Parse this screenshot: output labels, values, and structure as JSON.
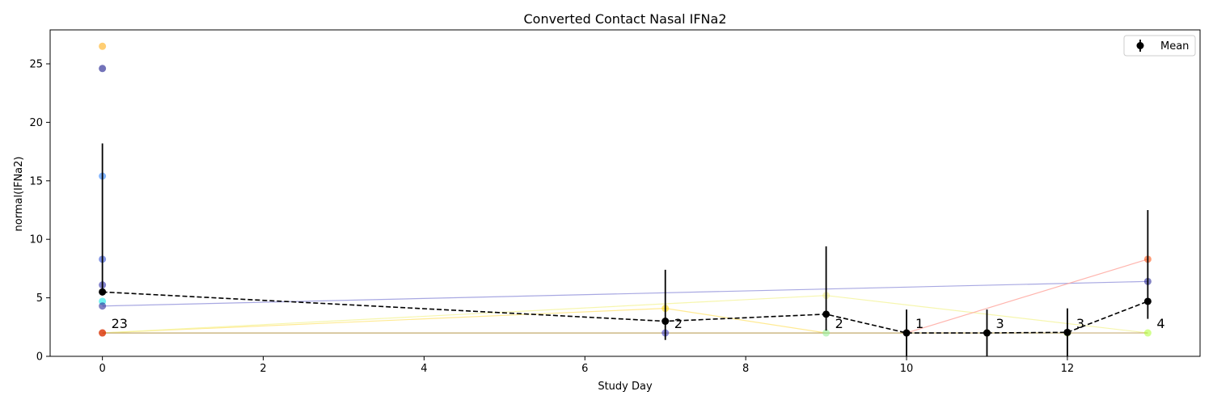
{
  "chart_data": {
    "type": "scatter",
    "title": "Converted Contact Nasal IFNa2",
    "xlabel": "Study Day",
    "ylabel": "normal(IFNa2)",
    "xlim": [
      -0.65,
      13.65
    ],
    "ylim": [
      0,
      27.9
    ],
    "xticks": [
      0,
      2,
      4,
      6,
      8,
      10,
      12
    ],
    "yticks": [
      0,
      5,
      10,
      15,
      20,
      25
    ],
    "grid": false,
    "legend": {
      "placement": "top-right",
      "entries": [
        "Mean"
      ]
    },
    "individual_points": [
      {
        "x": 0,
        "y": 26.5,
        "color": "#ffa500"
      },
      {
        "x": 0,
        "y": 24.6,
        "color": "#000080"
      },
      {
        "x": 0,
        "y": 15.4,
        "color": "#1e78ff"
      },
      {
        "x": 0,
        "y": 8.3,
        "color": "#1e40d0"
      },
      {
        "x": 0,
        "y": 6.1,
        "color": "#1a1aa0"
      },
      {
        "x": 0,
        "y": 4.7,
        "color": "#00e5e5"
      },
      {
        "x": 0,
        "y": 4.3,
        "color": "#1a1a90"
      },
      {
        "x": 0,
        "y": 2.0,
        "color": "#8b0000"
      },
      {
        "x": 0,
        "y": 2.0,
        "color": "#ff4500"
      },
      {
        "x": 7,
        "y": 4.1,
        "color": "#ffd700"
      },
      {
        "x": 7,
        "y": 2.0,
        "color": "#3030c0"
      },
      {
        "x": 9,
        "y": 5.2,
        "color": "#eeee90"
      },
      {
        "x": 9,
        "y": 2.0,
        "color": "#90ee90"
      },
      {
        "x": 10,
        "y": 2.0,
        "color": "#ff8c69"
      },
      {
        "x": 11,
        "y": 2.0,
        "color": "#d8e870"
      },
      {
        "x": 12,
        "y": 2.0,
        "color": "#9acd32"
      },
      {
        "x": 13,
        "y": 8.3,
        "color": "#ff4500"
      },
      {
        "x": 13,
        "y": 6.4,
        "color": "#1a1a90"
      },
      {
        "x": 13,
        "y": 2.0,
        "color": "#adff2f"
      }
    ],
    "individual_lines": [
      {
        "points": [
          [
            0,
            4.3
          ],
          [
            13,
            6.4
          ]
        ],
        "color": "#9999dd"
      },
      {
        "points": [
          [
            0,
            2.0
          ],
          [
            7,
            4.1
          ],
          [
            9,
            2.0
          ]
        ],
        "color": "#ffe680"
      },
      {
        "points": [
          [
            0,
            2.0
          ],
          [
            9,
            5.2
          ],
          [
            13,
            2.0
          ]
        ],
        "color": "#f4f4a0"
      },
      {
        "points": [
          [
            0,
            2.0
          ],
          [
            10,
            2.0
          ],
          [
            13,
            8.3
          ]
        ],
        "color": "#ffa8a0"
      },
      {
        "points": [
          [
            0,
            2.0
          ],
          [
            7,
            2.0
          ],
          [
            12,
            2.0
          ]
        ],
        "color": "#b8d890"
      },
      {
        "points": [
          [
            0,
            2.0
          ],
          [
            11,
            2.0
          ],
          [
            13,
            2.0
          ]
        ],
        "color": "#c0a060"
      }
    ],
    "series": [
      {
        "name": "Mean",
        "x": [
          0,
          7,
          9,
          10,
          11,
          12,
          13
        ],
        "y": [
          5.5,
          3.0,
          3.6,
          2.0,
          2.0,
          2.05,
          4.7
        ],
        "err_low": [
          0,
          1.6,
          1.4,
          2.0,
          2.0,
          2.05,
          1.5
        ],
        "err_high": [
          12.7,
          4.4,
          5.8,
          2.0,
          2.0,
          2.05,
          7.8
        ]
      }
    ],
    "counts": [
      {
        "x": 0,
        "label": "23"
      },
      {
        "x": 7,
        "label": "2"
      },
      {
        "x": 9,
        "label": "2"
      },
      {
        "x": 10,
        "label": "1"
      },
      {
        "x": 11,
        "label": "3"
      },
      {
        "x": 12,
        "label": "3"
      },
      {
        "x": 13,
        "label": "4"
      }
    ]
  }
}
